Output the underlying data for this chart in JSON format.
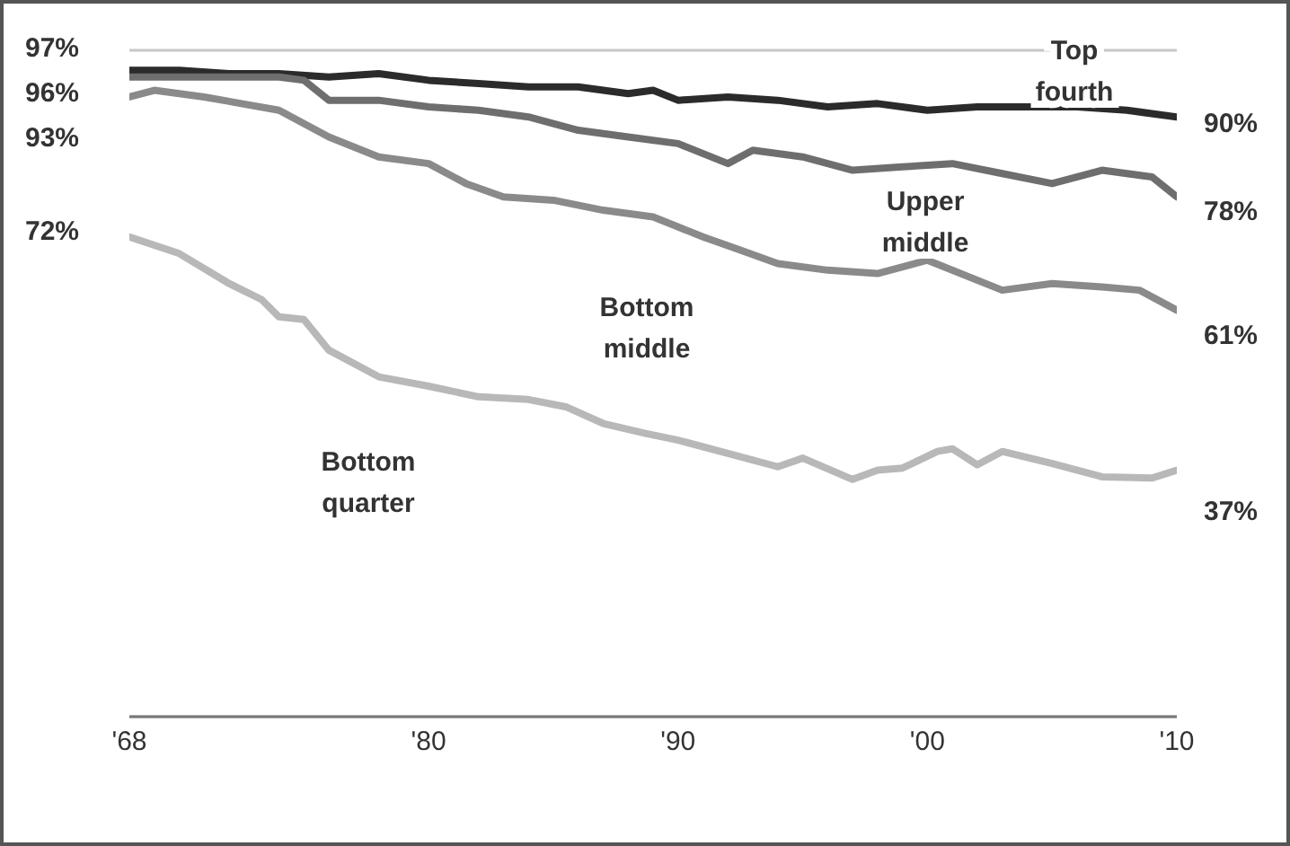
{
  "chart_data": {
    "type": "line",
    "xlim": [
      1968,
      2010
    ],
    "xticks": [
      {
        "value": 1968,
        "label": "'68"
      },
      {
        "value": 1980,
        "label": "'80"
      },
      {
        "value": 1990,
        "label": "'90"
      },
      {
        "value": 2000,
        "label": "'00"
      },
      {
        "value": 2010,
        "label": "'10"
      }
    ],
    "ylim": [
      0,
      100
    ],
    "tick_labels": "x",
    "grid": "y",
    "legend": false,
    "marker": "none",
    "line_style": "solid",
    "series": [
      {
        "name": "Top fourth",
        "color": "#2b2b2b",
        "x": [
          1968,
          1970,
          1972,
          1974,
          1976,
          1978,
          1980,
          1982,
          1984,
          1986,
          1988,
          1989,
          1990,
          1992,
          1994,
          1996,
          1998,
          2000,
          2002,
          2004,
          2006,
          2008,
          2010
        ],
        "values": [
          97,
          97,
          96.5,
          96.5,
          96,
          96.5,
          95.5,
          95,
          94.5,
          94.5,
          93.5,
          94,
          92.5,
          93,
          92.5,
          91.5,
          92,
          91,
          91.5,
          91.5,
          91.5,
          91,
          90
        ],
        "value_labels": [
          "97%",
          null,
          null,
          null,
          null,
          null,
          null,
          null,
          null,
          null,
          null,
          null,
          null,
          null,
          null,
          null,
          null,
          null,
          null,
          null,
          null,
          null,
          "90%"
        ]
      },
      {
        "name": "Upper middle",
        "color": "#6e6e6e",
        "x": [
          1968,
          1970,
          1972,
          1974,
          1975,
          1976,
          1978,
          1980,
          1982,
          1984,
          1986,
          1988,
          1990,
          1992,
          1993,
          1995,
          1997,
          1999,
          2001,
          2003,
          2005,
          2007,
          2009,
          2010
        ],
        "values": [
          96,
          96,
          96,
          96,
          95.5,
          92.5,
          92.5,
          91.5,
          91,
          90,
          88,
          87,
          86,
          83,
          85,
          84,
          82,
          82.5,
          83,
          81.5,
          80,
          82,
          81,
          78
        ],
        "value_labels": [
          "96%",
          null,
          null,
          null,
          null,
          null,
          null,
          null,
          null,
          null,
          null,
          null,
          null,
          null,
          null,
          null,
          null,
          null,
          null,
          null,
          null,
          null,
          null,
          "78%"
        ]
      },
      {
        "name": "Bottom middle",
        "color": "#8a8a8a",
        "x": [
          1968,
          1969,
          1971,
          1974,
          1976,
          1978,
          1980,
          1981.5,
          1983,
          1985,
          1987,
          1989,
          1991,
          1992.5,
          1994,
          1996,
          1998,
          2000,
          2003,
          2005,
          2007,
          2008.5,
          2010
        ],
        "values": [
          93,
          94,
          93,
          91,
          87,
          84,
          83,
          80,
          78,
          77.5,
          76,
          75,
          72,
          70,
          68,
          67,
          66.5,
          68.5,
          64,
          65,
          64.5,
          64,
          61
        ],
        "value_labels": [
          "93%",
          null,
          null,
          null,
          null,
          null,
          null,
          null,
          null,
          null,
          null,
          null,
          null,
          null,
          null,
          null,
          null,
          null,
          null,
          null,
          null,
          null,
          "61%"
        ]
      },
      {
        "name": "Bottom quarter",
        "color": "#b8b8b8",
        "x": [
          1968,
          1970,
          1972,
          1973.3,
          1974,
          1975,
          1976,
          1978,
          1980,
          1982,
          1984,
          1985.5,
          1987,
          1988.7,
          1990,
          1992,
          1994,
          1995,
          1997,
          1998,
          1999,
          2000.4,
          2001,
          2002,
          2003,
          2005,
          2007,
          2009,
          2010
        ],
        "values": [
          72,
          69.5,
          65,
          62.6,
          60,
          59.6,
          55,
          51,
          49.6,
          48,
          47.6,
          46.5,
          44,
          42.5,
          41.5,
          39.5,
          37.5,
          38.8,
          35.6,
          37,
          37.3,
          39.8,
          40.2,
          37.8,
          39.8,
          38,
          36,
          35.8,
          37
        ],
        "value_labels": [
          "72%",
          null,
          null,
          null,
          null,
          null,
          null,
          null,
          null,
          null,
          null,
          null,
          null,
          null,
          null,
          null,
          null,
          null,
          null,
          null,
          null,
          null,
          null,
          null,
          null,
          null,
          null,
          null,
          "37%"
        ]
      }
    ]
  }
}
